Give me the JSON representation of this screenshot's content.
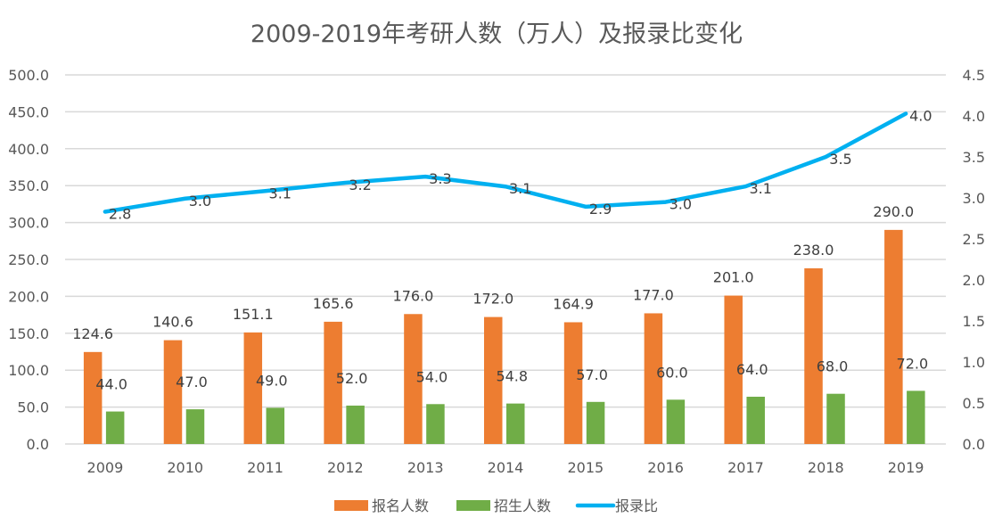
{
  "chart_data": {
    "type": "bar",
    "title": "2009-2019年考研人数（万人）及报录比变化",
    "categories": [
      "2009",
      "2010",
      "2011",
      "2012",
      "2013",
      "2014",
      "2015",
      "2016",
      "2017",
      "2018",
      "2019"
    ],
    "series": [
      {
        "name": "报名人数",
        "type": "bar",
        "axis": "left",
        "color": "#ED7D31",
        "values": [
          124.6,
          140.6,
          151.1,
          165.6,
          176.0,
          172.0,
          164.9,
          177.0,
          201.0,
          238.0,
          290.0
        ],
        "labels": [
          "124.6",
          "140.6",
          "151.1",
          "165.6",
          "176.0",
          "172.0",
          "164.9",
          "177.0",
          "201.0",
          "238.0",
          "290.0"
        ]
      },
      {
        "name": "招生人数",
        "type": "bar",
        "axis": "left",
        "color": "#70AD47",
        "values": [
          44.0,
          47.0,
          49.0,
          52.0,
          54.0,
          54.8,
          57.0,
          60.0,
          64.0,
          68.0,
          72.0
        ],
        "labels": [
          "44.0",
          "47.0",
          "49.0",
          "52.0",
          "54.0",
          "54.8",
          "57.0",
          "60.0",
          "64.0",
          "68.0",
          "72.0"
        ]
      },
      {
        "name": "报录比",
        "type": "line",
        "axis": "right",
        "color": "#00B0F0",
        "values": [
          2.8,
          3.0,
          3.1,
          3.2,
          3.3,
          3.1,
          2.9,
          3.0,
          3.1,
          3.5,
          4.0
        ],
        "labels": [
          "2.8",
          "3.0",
          "3.1",
          "3.2",
          "3.3",
          "3.1",
          "2.9",
          "3.0",
          "3.1",
          "3.5",
          "4.0"
        ]
      }
    ],
    "y_left": {
      "min": 0,
      "max": 500,
      "step": 50,
      "ticks": [
        "0.0",
        "50.0",
        "100.0",
        "150.0",
        "200.0",
        "250.0",
        "300.0",
        "350.0",
        "400.0",
        "450.0",
        "500.0"
      ]
    },
    "y_right": {
      "min": 0,
      "max": 4.5,
      "step": 0.5,
      "ticks": [
        "0.0",
        "0.5",
        "1.0",
        "1.5",
        "2.0",
        "2.5",
        "3.0",
        "3.5",
        "4.0",
        "4.5"
      ]
    },
    "grid": true,
    "legend": "bottom",
    "xlabel": "",
    "ylabel": ""
  }
}
